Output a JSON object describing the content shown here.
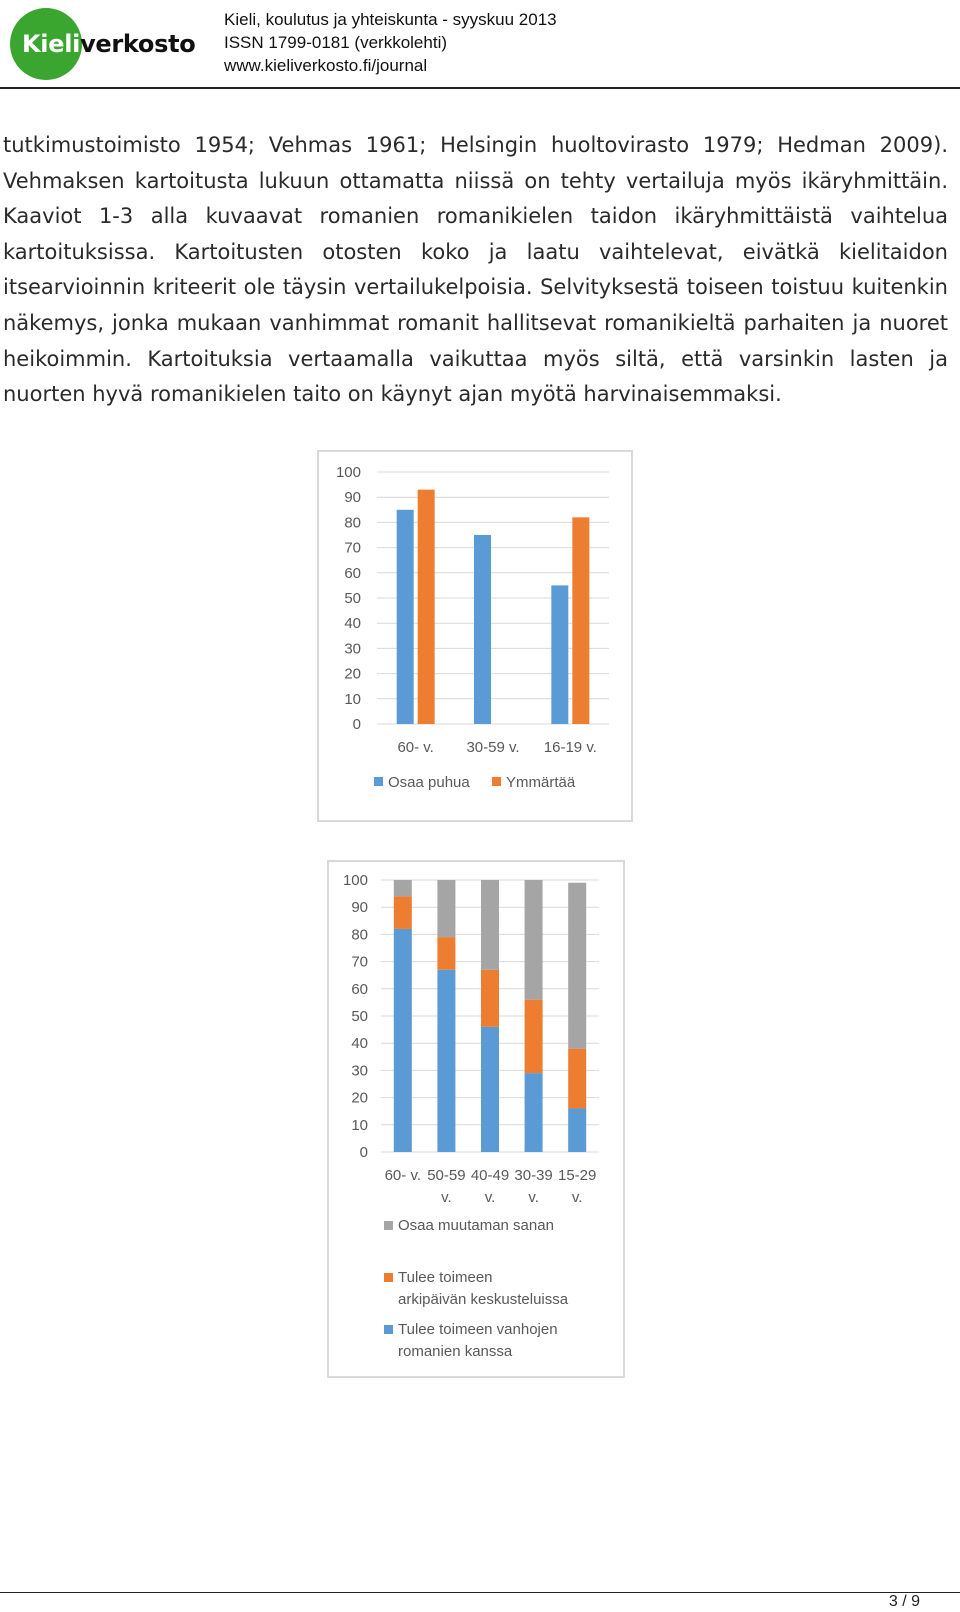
{
  "header": {
    "logo": "Kieliverkosto",
    "journal_line1": "Kieli, koulutus ja yhteiskunta - syyskuu 2013",
    "journal_line2": "ISSN 1799-0181 (verkkolehti)",
    "journal_line3": "www.kieliverkosto.fi/journal"
  },
  "body": {
    "lines": [
      "tutkimustoimisto 1954; Vehmas 1961; Helsingin huoltovirasto 1979; Hedman 2009).",
      "Vehmaksen kartoitusta lukuun ottamatta niissä on tehty vertailuja myös ikäryhmittäin.",
      "Kaaviot 1-3 alla kuvaavat romanien romanikielen taidon ikäryhmittäistä vaihtelua",
      "kartoituksissa. Kartoitusten otosten koko ja laatu vaihtelevat, eivätkä kielitaidon",
      "itsearvioinnin kriteerit ole täysin vertailukelpoisia. Selvityksestä toiseen toistuu kuitenkin",
      "näkemys, jonka mukaan vanhimmat romanit hallitsevat romanikieltä parhaiten ja nuoret",
      "heikoimmin. Kartoituksia vertaamalla vaikuttaa myös siltä, että varsinkin lasten ja",
      "nuorten hyvä romanikielen taito on käynyt ajan myötä harvinaisemmaksi."
    ]
  },
  "chart_data": [
    {
      "type": "bar",
      "categories": [
        "60- v.",
        "30-59 v.",
        "16-19 v."
      ],
      "series": [
        {
          "name": "Osaa puhua",
          "values": [
            85,
            75,
            55
          ],
          "color": "#5b9bd5"
        },
        {
          "name": "Ymmärtää",
          "values": [
            93,
            null,
            82
          ],
          "color": "#ed7d31"
        }
      ],
      "yticks": [
        "0",
        "10",
        "20",
        "30",
        "40",
        "50",
        "60",
        "70",
        "80",
        "90",
        "100"
      ],
      "ylim": [
        0,
        100
      ],
      "grid": true,
      "legend": "bottom"
    },
    {
      "type": "bar",
      "stacked": true,
      "categories": [
        [
          "60- v."
        ],
        [
          "50-59",
          "v."
        ],
        [
          "40-49",
          "v."
        ],
        [
          "30-39",
          "v."
        ],
        [
          "15-29",
          "v."
        ]
      ],
      "series": [
        {
          "name": "Tulee toimeen vanhojen romanien kanssa",
          "legend_lines": [
            "Tulee toimeen vanhojen",
            "romanien kanssa"
          ],
          "values": [
            82,
            67,
            46,
            29,
            16
          ],
          "color": "#5b9bd5"
        },
        {
          "name": "Tulee toimeen arkipäivän keskusteluissa",
          "legend_lines": [
            "Tulee toimeen",
            "arkipäivän keskusteluissa"
          ],
          "values": [
            12,
            12,
            21,
            27,
            22
          ],
          "color": "#ed7d31"
        },
        {
          "name": "Osaa muutaman sanan",
          "legend_lines": [
            "Osaa muutaman sanan"
          ],
          "values": [
            6,
            21,
            33,
            44,
            61
          ],
          "color": "#a5a5a5"
        }
      ],
      "legend_order": [
        2,
        1,
        0
      ],
      "yticks": [
        "0",
        "10",
        "20",
        "30",
        "40",
        "50",
        "60",
        "70",
        "80",
        "90",
        "100"
      ],
      "ylim": [
        0,
        100
      ],
      "grid": true,
      "legend": "bottom"
    }
  ],
  "footer": {
    "page": "3 / 9"
  }
}
